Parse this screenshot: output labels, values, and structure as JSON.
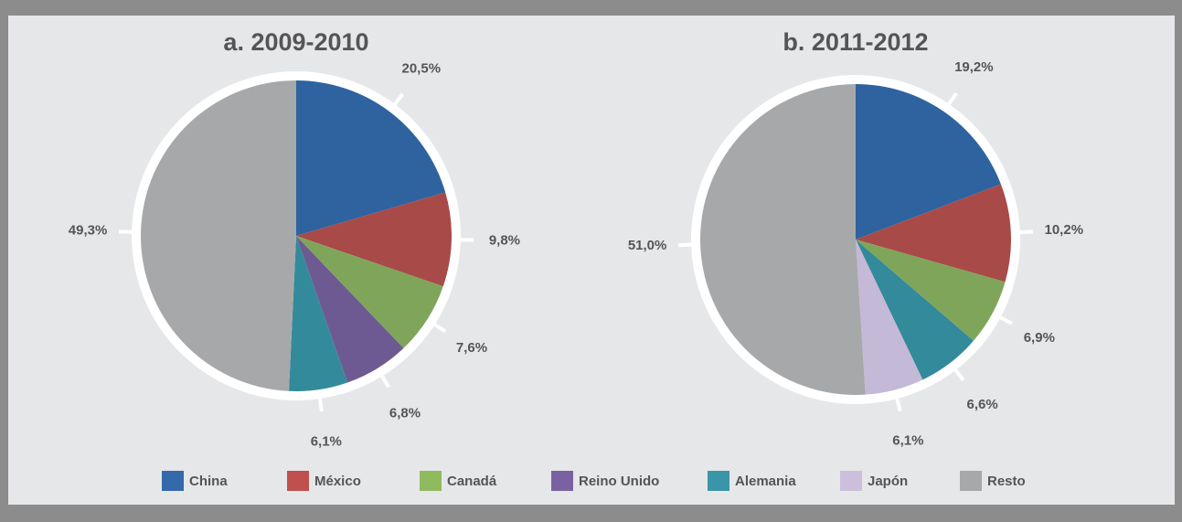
{
  "chart_data": [
    {
      "type": "pie",
      "title": "a. 2009-2010",
      "categories": [
        "China",
        "México",
        "Canadá",
        "Reino Unido",
        "Alemania",
        "Resto"
      ],
      "values": [
        20.5,
        9.8,
        7.6,
        6.8,
        6.1,
        49.3
      ],
      "value_labels": [
        "20,5%",
        "9,8%",
        "7,6%",
        "6,8%",
        "6,1%",
        "49,3%"
      ],
      "colors": [
        "#2e63a0",
        "#a84a48",
        "#7fa55a",
        "#6e5a92",
        "#338a9b",
        "#a7a8aa"
      ]
    },
    {
      "type": "pie",
      "title": "b. 2011-2012",
      "categories": [
        "China",
        "México",
        "Canadá",
        "Alemania",
        "Japón",
        "Resto"
      ],
      "values": [
        19.2,
        10.2,
        6.9,
        6.6,
        6.1,
        51.0
      ],
      "value_labels": [
        "19,2%",
        "10,2%",
        "6,9%",
        "6,6%",
        "6,1%",
        "51,0%"
      ],
      "colors": [
        "#2e63a0",
        "#a84a48",
        "#7fa55a",
        "#338a9b",
        "#c4b9d6",
        "#a7a8aa"
      ]
    }
  ],
  "legend": {
    "items": [
      {
        "name": "China",
        "color": "#3569ab"
      },
      {
        "name": "México",
        "color": "#c0504d"
      },
      {
        "name": "Canadá",
        "color": "#8fbb5e"
      },
      {
        "name": "Reino Unido",
        "color": "#7a62a2"
      },
      {
        "name": "Alemania",
        "color": "#3a95a8"
      },
      {
        "name": "Japón",
        "color": "#cbbfdc"
      },
      {
        "name": "Resto",
        "color": "#a7a8aa"
      }
    ]
  }
}
